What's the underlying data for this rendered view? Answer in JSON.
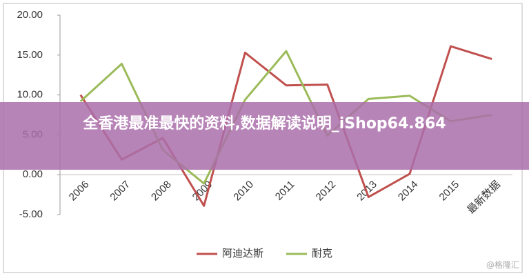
{
  "chart_data": {
    "type": "line",
    "categories": [
      "2006",
      "2007",
      "2008",
      "2009",
      "2010",
      "2011",
      "2012",
      "2013",
      "2014",
      "2015",
      "最新数据"
    ],
    "series": [
      {
        "name": "阿迪达斯",
        "color": "#c0504d",
        "values": [
          10.0,
          1.9,
          4.6,
          -3.9,
          15.3,
          11.2,
          11.3,
          -2.8,
          0.1,
          16.1,
          14.5
        ]
      },
      {
        "name": "耐克",
        "color": "#9bbb59",
        "values": [
          9.2,
          13.9,
          3.1,
          -1.1,
          9.4,
          15.5,
          4.9,
          9.5,
          9.9,
          6.7,
          7.5
        ]
      }
    ],
    "ylim": [
      -5,
      20
    ],
    "yticks": [
      {
        "value": -5,
        "label": "-5.00"
      },
      {
        "value": 0,
        "label": "0.00"
      },
      {
        "value": 5,
        "label": "5.00"
      },
      {
        "value": 10,
        "label": "10.00"
      },
      {
        "value": 15,
        "label": "15.00"
      },
      {
        "value": 20,
        "label": "20.00"
      }
    ],
    "grid": false
  },
  "banner": "全香港最准最快的资料,数据解读说明_iShop64.864",
  "watermark": "@格隆汇"
}
